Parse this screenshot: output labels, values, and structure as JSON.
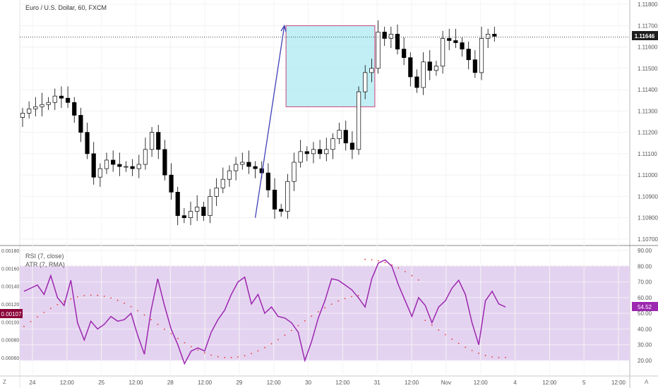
{
  "header": {
    "title": "Euro / U.S. Dollar, 60, FXCM"
  },
  "price_pane": {
    "current_price": "1.11646",
    "ticks": [
      "1.11800",
      "1.11700",
      "1.11600",
      "1.11500",
      "1.11400",
      "1.11300",
      "1.11200",
      "1.11100",
      "1.11000",
      "1.10900",
      "1.10800",
      "1.10700"
    ]
  },
  "indicator_pane": {
    "legend": [
      "RSI (7, close)",
      "ATR (7, RMA)"
    ],
    "rsi_value": "54.52",
    "atr_value": "0.00107",
    "rsi_ticks": [
      "90.00",
      "80.00",
      "70.00",
      "60.00",
      "50.00",
      "40.00",
      "30.00",
      "20.00"
    ],
    "atr_ticks": [
      "0.00180",
      "0.00160",
      "0.00140",
      "0.00120",
      "0.00100",
      "0.00080",
      "0.00060"
    ]
  },
  "time_axis": {
    "labels": [
      "24",
      "12:00",
      "25",
      "12:00",
      "28",
      "12:00",
      "29",
      "12:00",
      "30",
      "12:00",
      "31",
      "12:00",
      "Nov",
      "12:00",
      "4",
      "12:00",
      "5",
      "12:00"
    ],
    "corner_left": "Z",
    "corner_right": "A"
  },
  "chart_data": [
    {
      "type": "candlestick",
      "title": "Euro / U.S. Dollar, 60, FXCM",
      "ylim": [
        1.1067,
        1.1182
      ],
      "x_range": [
        0,
        187
      ],
      "x": [
        [
          0,
          1.1129
        ],
        [
          2,
          1.1131
        ],
        [
          4,
          1.1132
        ],
        [
          6,
          1.1133
        ],
        [
          8,
          1.1134
        ],
        [
          10,
          1.1137
        ],
        [
          12,
          1.1136
        ],
        [
          14,
          1.1134
        ],
        [
          16,
          1.1128
        ],
        [
          18,
          1.112
        ],
        [
          20,
          1.111
        ],
        [
          22,
          1.1099
        ],
        [
          24,
          1.1103
        ],
        [
          26,
          1.1107
        ],
        [
          28,
          1.1105
        ],
        [
          30,
          1.1104
        ],
        [
          32,
          1.1104
        ],
        [
          34,
          1.1103
        ],
        [
          36,
          1.1105
        ],
        [
          38,
          1.1112
        ],
        [
          40,
          1.112
        ],
        [
          42,
          1.1112
        ],
        [
          44,
          1.11
        ],
        [
          46,
          1.1092
        ],
        [
          48,
          1.1081
        ],
        [
          50,
          1.108
        ],
        [
          52,
          1.1083
        ],
        [
          54,
          1.1085
        ],
        [
          56,
          1.1081
        ],
        [
          58,
          1.109
        ],
        [
          60,
          1.1094
        ],
        [
          62,
          1.1098
        ],
        [
          64,
          1.1102
        ],
        [
          66,
          1.1105
        ],
        [
          68,
          1.1106
        ],
        [
          70,
          1.1104
        ],
        [
          72,
          1.1103
        ],
        [
          74,
          1.1101
        ],
        [
          76,
          1.1093
        ],
        [
          78,
          1.1084
        ],
        [
          80,
          1.1083
        ],
        [
          82,
          1.1097
        ],
        [
          84,
          1.1106
        ],
        [
          86,
          1.1111
        ],
        [
          88,
          1.111
        ],
        [
          90,
          1.1112
        ],
        [
          92,
          1.111
        ],
        [
          94,
          1.1112
        ],
        [
          96,
          1.1117
        ],
        [
          98,
          1.1121
        ],
        [
          100,
          1.1115
        ],
        [
          102,
          1.1112
        ],
        [
          104,
          1.1139
        ],
        [
          106,
          1.1148
        ],
        [
          108,
          1.115
        ],
        [
          110,
          1.1167
        ],
        [
          112,
          1.1164
        ],
        [
          114,
          1.1166
        ],
        [
          116,
          1.1159
        ],
        [
          118,
          1.1155
        ],
        [
          120,
          1.1146
        ],
        [
          122,
          1.1141
        ],
        [
          124,
          1.1153
        ],
        [
          126,
          1.1149
        ],
        [
          128,
          1.1151
        ],
        [
          130,
          1.1164
        ],
        [
          132,
          1.1163
        ],
        [
          134,
          1.1162
        ],
        [
          136,
          1.1159
        ],
        [
          138,
          1.1154
        ],
        [
          140,
          1.1148
        ],
        [
          142,
          1.1164
        ],
        [
          144,
          1.1166
        ],
        [
          146,
          1.1165
        ]
      ]
    },
    {
      "type": "line",
      "series": [
        {
          "name": "RSI (7, close)",
          "values": [
            64,
            66,
            68,
            62,
            74,
            60,
            55,
            71,
            44,
            33,
            45,
            40,
            43,
            48,
            45,
            46,
            50,
            36,
            24,
            52,
            72,
            55,
            40,
            30,
            18,
            26,
            28,
            26,
            38,
            46,
            52,
            62,
            70,
            73,
            56,
            62,
            50,
            54,
            48,
            47,
            44,
            38,
            20,
            32,
            47,
            58,
            72,
            71,
            68,
            65,
            60,
            54,
            72,
            82,
            84,
            80,
            68,
            58,
            48,
            60,
            55,
            44,
            54,
            58,
            66,
            71,
            62,
            44,
            30,
            58,
            64,
            56,
            54
          ]
        }
      ]
    }
  ],
  "drawings": {
    "arrow": {
      "from": [
        72,
        1.108
      ],
      "to": [
        81,
        1.117
      ]
    },
    "box": {
      "x0": 81.5,
      "x1": 109,
      "y0": 1.1132,
      "y1": 1.117
    }
  }
}
